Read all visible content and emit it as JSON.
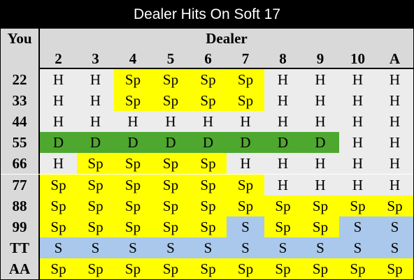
{
  "title": "Dealer Hits On Soft 17",
  "you_label": "You",
  "dealer_label": "Dealer",
  "colors": {
    "H": "#ececec",
    "Sp": "#ffff00",
    "D": "#4ea72e",
    "S": "#a9c8eb",
    "header": "#d9d9d9"
  },
  "dealer_cards": [
    "2",
    "3",
    "4",
    "5",
    "6",
    "7",
    "8",
    "9",
    "10",
    "A"
  ],
  "rows": [
    {
      "hand": "22",
      "actions": [
        "H",
        "H",
        "Sp",
        "Sp",
        "Sp",
        "Sp",
        "H",
        "H",
        "H",
        "H"
      ]
    },
    {
      "hand": "33",
      "actions": [
        "H",
        "H",
        "Sp",
        "Sp",
        "Sp",
        "Sp",
        "H",
        "H",
        "H",
        "H"
      ]
    },
    {
      "hand": "44",
      "actions": [
        "H",
        "H",
        "H",
        "H",
        "H",
        "H",
        "H",
        "H",
        "H",
        "H"
      ]
    },
    {
      "hand": "55",
      "actions": [
        "D",
        "D",
        "D",
        "D",
        "D",
        "D",
        "D",
        "D",
        "H",
        "H"
      ]
    },
    {
      "hand": "66",
      "actions": [
        "H",
        "Sp",
        "Sp",
        "Sp",
        "Sp",
        "H",
        "H",
        "H",
        "H",
        "H"
      ]
    },
    {
      "hand": "77",
      "actions": [
        "Sp",
        "Sp",
        "Sp",
        "Sp",
        "Sp",
        "Sp",
        "H",
        "H",
        "H",
        "H"
      ]
    },
    {
      "hand": "88",
      "actions": [
        "Sp",
        "Sp",
        "Sp",
        "Sp",
        "Sp",
        "Sp",
        "Sp",
        "Sp",
        "Sp",
        "Sp"
      ]
    },
    {
      "hand": "99",
      "actions": [
        "Sp",
        "Sp",
        "Sp",
        "Sp",
        "Sp",
        "S",
        "Sp",
        "Sp",
        "S",
        "S"
      ]
    },
    {
      "hand": "TT",
      "actions": [
        "S",
        "S",
        "S",
        "S",
        "S",
        "S",
        "S",
        "S",
        "S",
        "S"
      ]
    },
    {
      "hand": "AA",
      "actions": [
        "Sp",
        "Sp",
        "Sp",
        "Sp",
        "Sp",
        "Sp",
        "Sp",
        "Sp",
        "Sp",
        "Sp"
      ]
    }
  ]
}
